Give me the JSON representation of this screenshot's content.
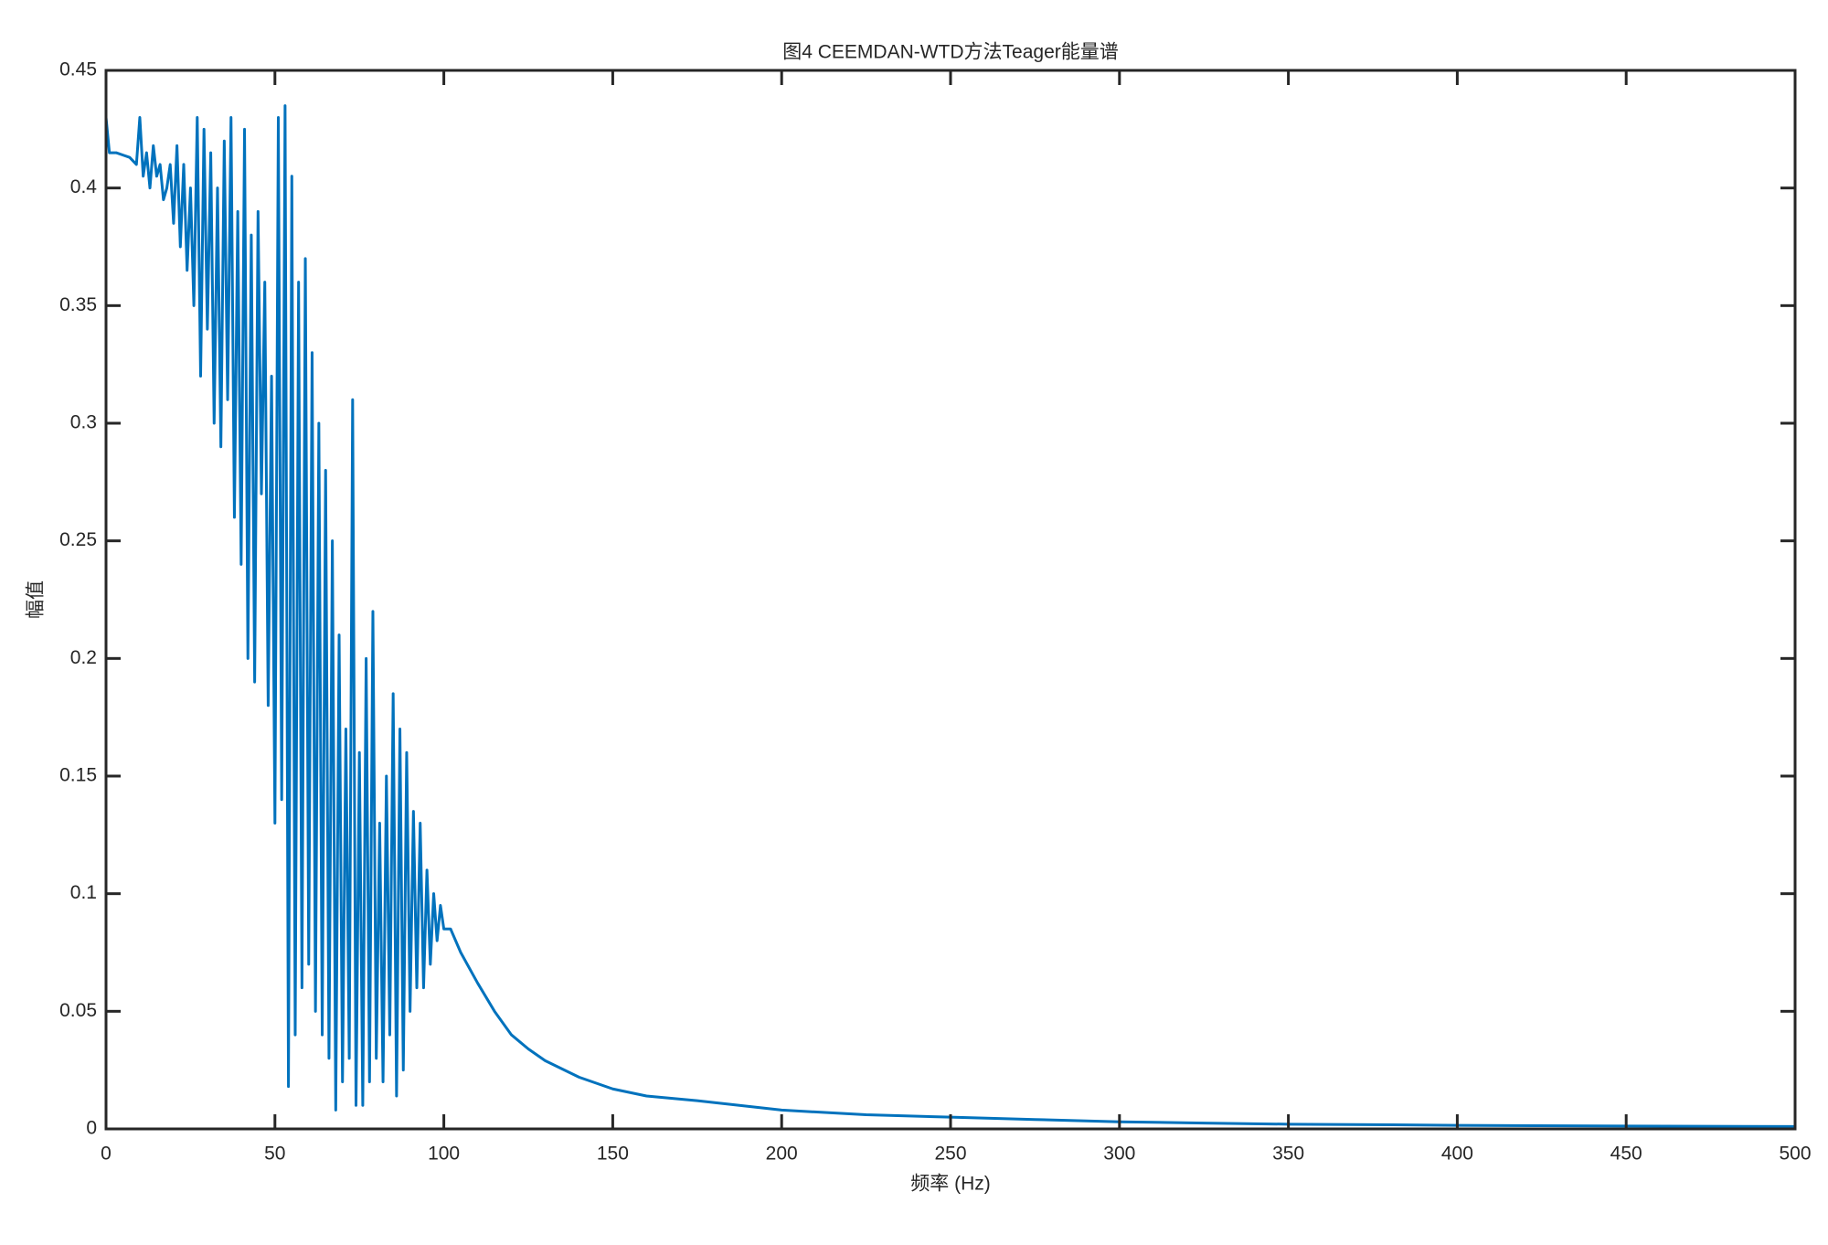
{
  "chart_data": {
    "type": "line",
    "title": "图4 CEEMDAN-WTD方法Teager能量谱",
    "x_label": "频率 (Hz)",
    "y_label": "幅值",
    "xlim": [
      0,
      500
    ],
    "ylim": [
      0,
      0.45
    ],
    "xticks": [
      0,
      50,
      100,
      150,
      200,
      250,
      300,
      350,
      400,
      450,
      500
    ],
    "yticks": [
      0,
      0.05,
      0.1,
      0.15,
      0.2,
      0.25,
      0.3,
      0.35,
      0.4,
      0.45
    ],
    "x": [
      0,
      1,
      3,
      5,
      7,
      9,
      10,
      11,
      12,
      13,
      14,
      15,
      16,
      17,
      18,
      19,
      20,
      21,
      22,
      23,
      24,
      25,
      26,
      27,
      28,
      29,
      30,
      31,
      32,
      33,
      34,
      35,
      36,
      37,
      38,
      39,
      40,
      41,
      42,
      43,
      44,
      45,
      46,
      47,
      48,
      49,
      50,
      51,
      52,
      53,
      54,
      55,
      56,
      57,
      58,
      59,
      60,
      61,
      62,
      63,
      64,
      65,
      66,
      67,
      68,
      69,
      70,
      71,
      72,
      73,
      74,
      75,
      76,
      77,
      78,
      79,
      80,
      81,
      82,
      83,
      84,
      85,
      86,
      87,
      88,
      89,
      90,
      91,
      92,
      93,
      94,
      95,
      96,
      97,
      98,
      99,
      100,
      102,
      105,
      110,
      115,
      120,
      125,
      130,
      140,
      150,
      160,
      175,
      200,
      225,
      250,
      275,
      300,
      325,
      350,
      375,
      400,
      450,
      500
    ],
    "series": [
      {
        "name": "Teager",
        "color": "#0072bd",
        "values": [
          0.43,
          0.415,
          0.415,
          0.414,
          0.413,
          0.41,
          0.43,
          0.405,
          0.415,
          0.4,
          0.418,
          0.405,
          0.41,
          0.395,
          0.4,
          0.41,
          0.385,
          0.418,
          0.375,
          0.41,
          0.365,
          0.4,
          0.35,
          0.43,
          0.32,
          0.425,
          0.34,
          0.415,
          0.3,
          0.4,
          0.29,
          0.42,
          0.31,
          0.43,
          0.26,
          0.39,
          0.24,
          0.425,
          0.2,
          0.38,
          0.19,
          0.39,
          0.27,
          0.36,
          0.18,
          0.32,
          0.13,
          0.43,
          0.14,
          0.435,
          0.018,
          0.405,
          0.04,
          0.36,
          0.06,
          0.37,
          0.07,
          0.33,
          0.05,
          0.3,
          0.04,
          0.28,
          0.03,
          0.25,
          0.008,
          0.21,
          0.02,
          0.17,
          0.03,
          0.31,
          0.01,
          0.16,
          0.01,
          0.2,
          0.02,
          0.22,
          0.03,
          0.13,
          0.02,
          0.15,
          0.04,
          0.185,
          0.014,
          0.17,
          0.025,
          0.16,
          0.05,
          0.135,
          0.06,
          0.13,
          0.06,
          0.11,
          0.07,
          0.1,
          0.08,
          0.095,
          0.085,
          0.085,
          0.075,
          0.062,
          0.05,
          0.04,
          0.034,
          0.029,
          0.022,
          0.017,
          0.014,
          0.012,
          0.008,
          0.006,
          0.005,
          0.004,
          0.003,
          0.0025,
          0.002,
          0.0018,
          0.0015,
          0.0012,
          0.001
        ]
      }
    ]
  }
}
